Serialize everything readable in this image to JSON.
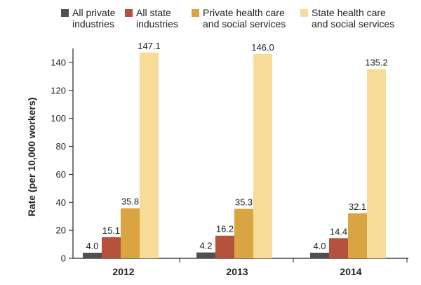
{
  "chart_data": {
    "type": "bar",
    "title": "",
    "xlabel": "",
    "ylabel": "Rate (per 10,000 workers)",
    "ylim": [
      0,
      150
    ],
    "yticks": [
      0,
      20,
      40,
      60,
      80,
      100,
      120,
      140
    ],
    "categories": [
      "2012",
      "2013",
      "2014"
    ],
    "series": [
      {
        "name": "All private\nindustries",
        "color": "#505050",
        "values": [
          4.0,
          4.2,
          4.0
        ],
        "labels": [
          "4.0",
          "4.2",
          "4.0"
        ]
      },
      {
        "name": "All state\nindustries",
        "color": "#b5523b",
        "values": [
          15.1,
          16.2,
          14.4
        ],
        "labels": [
          "15.1",
          "16.2",
          "14.4"
        ]
      },
      {
        "name": "Private health care\nand social services",
        "color": "#d9a441",
        "values": [
          35.8,
          35.3,
          32.1
        ],
        "labels": [
          "35.8",
          "35.3",
          "32.1"
        ]
      },
      {
        "name": "State health care\nand social services",
        "color": "#f7dc98",
        "values": [
          147.1,
          146.0,
          135.2
        ],
        "labels": [
          "147.1",
          "146.0",
          "135.2"
        ]
      }
    ],
    "legend_position": "top"
  }
}
